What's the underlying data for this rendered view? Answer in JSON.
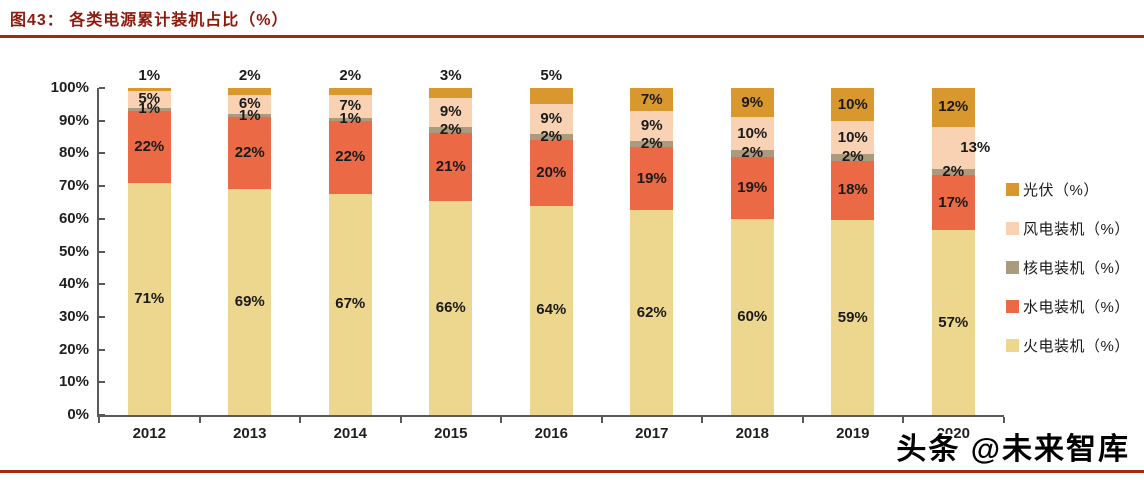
{
  "header": {
    "title": "图43：  各类电源累计装机占比（%）"
  },
  "watermark": {
    "text": "头条 @未来智库"
  },
  "colors": {
    "title_red": "#8C1B0D",
    "divider_red": "#9E2D0C",
    "axis_gray": "#595959",
    "label_dark": "#1a1a1a"
  },
  "chart_data": {
    "type": "bar",
    "subtype": "stacked-percent",
    "title": "各类电源累计装机占比（%）",
    "categories": [
      "2012",
      "2013",
      "2014",
      "2015",
      "2016",
      "2017",
      "2018",
      "2019",
      "2020"
    ],
    "series": [
      {
        "name": "火电装机（%）",
        "key": "thermal",
        "color": "#EDD78F",
        "values": [
          71,
          69,
          67,
          66,
          64,
          62,
          60,
          59,
          57
        ]
      },
      {
        "name": "水电装机（%）",
        "key": "hydro",
        "color": "#EB6A45",
        "values": [
          22,
          22,
          22,
          21,
          20,
          19,
          19,
          18,
          17
        ]
      },
      {
        "name": "核电装机（%）",
        "key": "nuclear",
        "color": "#AB9A7D",
        "values": [
          1,
          1,
          1,
          2,
          2,
          2,
          2,
          2,
          2
        ]
      },
      {
        "name": "风电装机（%）",
        "key": "wind",
        "color": "#F8D2B3",
        "values": [
          5,
          6,
          7,
          9,
          9,
          9,
          10,
          10,
          13
        ]
      },
      {
        "name": "光伏（%）",
        "key": "solar",
        "color": "#D9982E",
        "values": [
          1,
          2,
          2,
          3,
          5,
          7,
          9,
          10,
          12
        ]
      }
    ],
    "data_labels": true,
    "y_ticks": [
      "0%",
      "10%",
      "20%",
      "30%",
      "40%",
      "50%",
      "60%",
      "70%",
      "80%",
      "90%",
      "100%"
    ],
    "ylim": [
      0,
      100
    ],
    "grid": false,
    "legend_position": "right",
    "legend_order_top_to_bottom": [
      "光伏（%）",
      "风电装机（%）",
      "核电装机（%）",
      "水电装机（%）",
      "火电装机（%）"
    ]
  }
}
